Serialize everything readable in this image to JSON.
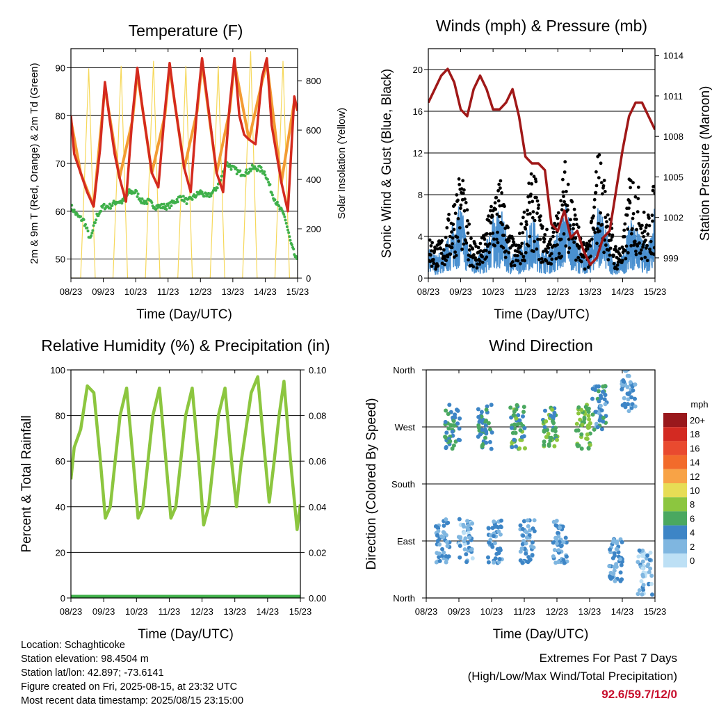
{
  "chart_data": [
    {
      "type": "line",
      "title": "Temperature (F)",
      "xlabel": "Time (Day/UTC)",
      "ylabel": "2m & 9m T (Red, Orange) & 2m Td (Green)",
      "ylabel_right": "Solar Insolation (Yellow)",
      "x_ticks": [
        "08/23",
        "09/23",
        "10/23",
        "11/23",
        "12/23",
        "13/23",
        "14/23",
        "15/23"
      ],
      "ylim": [
        46,
        94
      ],
      "y_ticks": [
        50,
        60,
        70,
        80,
        90
      ],
      "ylim_right": [
        0,
        930
      ],
      "y_ticks_right": [
        0,
        200,
        400,
        600,
        800
      ],
      "colors": {
        "t2m": "#d42a1e",
        "t9m": "#f39c33",
        "td": "#3fb04a",
        "solar": "#f6d85a"
      },
      "series": [
        {
          "name": "2m T",
          "x": [
            0,
            0.1,
            0.3,
            0.5,
            0.7,
            0.9,
            1.05,
            1.2,
            1.35,
            1.5,
            1.7,
            1.9,
            2.05,
            2.2,
            2.35,
            2.5,
            2.7,
            2.9,
            3.05,
            3.2,
            3.35,
            3.5,
            3.7,
            3.9,
            4.05,
            4.2,
            4.35,
            4.5,
            4.7,
            4.9,
            5.05,
            5.2,
            5.35,
            5.5,
            5.7,
            5.9,
            6.05,
            6.2,
            6.35,
            6.5,
            6.7,
            6.9,
            7.0
          ],
          "values": [
            80,
            72,
            68,
            64,
            61,
            73,
            87,
            79,
            72,
            67,
            62,
            80,
            90,
            82,
            75,
            68,
            65,
            81,
            91,
            83,
            76,
            69,
            64,
            82,
            92,
            84,
            76,
            68,
            64,
            82,
            92,
            80,
            76,
            75,
            74,
            88,
            92,
            78,
            72,
            66,
            60,
            84,
            81
          ]
        },
        {
          "name": "9m T",
          "x": [
            0,
            0.3,
            0.7,
            1.05,
            1.5,
            1.9,
            2.05,
            2.5,
            2.9,
            3.05,
            3.5,
            3.9,
            4.05,
            4.5,
            4.9,
            5.05,
            5.5,
            5.9,
            6.05,
            6.5,
            6.9,
            7.0
          ],
          "values": [
            79,
            68,
            61,
            86,
            67,
            79,
            89,
            68,
            80,
            90,
            69,
            81,
            91,
            68,
            81,
            91,
            75,
            87,
            91,
            66,
            83,
            81
          ]
        },
        {
          "name": "2m Td",
          "x": [
            0,
            0.2,
            0.4,
            0.6,
            0.8,
            1.0,
            1.2,
            1.4,
            1.6,
            1.8,
            2.0,
            2.2,
            2.4,
            2.6,
            2.8,
            3.0,
            3.2,
            3.4,
            3.6,
            3.8,
            4.0,
            4.2,
            4.4,
            4.6,
            4.8,
            5.0,
            5.2,
            5.4,
            5.6,
            5.8,
            6.0,
            6.2,
            6.4,
            6.6,
            6.8,
            7.0
          ],
          "values": [
            61,
            59,
            58,
            54,
            59,
            61,
            61,
            62,
            62,
            64,
            64,
            62,
            62,
            61,
            61,
            61,
            62,
            63,
            62,
            63,
            64,
            63,
            64,
            66,
            70,
            69,
            68,
            68,
            69,
            69,
            68,
            64,
            61,
            59,
            53,
            49
          ]
        },
        {
          "name": "Solar Insolation",
          "axis": "right",
          "x": [
            0,
            0.3,
            0.55,
            0.75,
            0.95,
            1.3,
            1.55,
            1.75,
            1.95,
            2.3,
            2.55,
            2.75,
            2.95,
            3.3,
            3.55,
            3.75,
            3.95,
            4.3,
            4.55,
            4.75,
            4.95,
            5.3,
            5.55,
            5.75,
            5.95,
            6.3,
            6.55,
            6.75,
            6.95
          ],
          "values": [
            0,
            0,
            850,
            0,
            0,
            0,
            860,
            0,
            0,
            0,
            880,
            0,
            0,
            0,
            860,
            0,
            0,
            0,
            860,
            0,
            0,
            0,
            920,
            0,
            0,
            0,
            880,
            0,
            0
          ]
        }
      ]
    },
    {
      "type": "scatter",
      "title": "Winds (mph) & Pressure (mb)",
      "xlabel": "Time (Day/UTC)",
      "ylabel": "Sonic Wind & Gust (Blue, Black)",
      "ylabel_right": "Station Pressure (Maroon)",
      "x_ticks": [
        "08/23",
        "09/23",
        "10/23",
        "11/23",
        "12/23",
        "13/23",
        "14/23",
        "15/23"
      ],
      "ylim": [
        0,
        22
      ],
      "y_ticks": [
        0,
        4,
        8,
        12,
        16,
        20
      ],
      "ylim_right": [
        997.5,
        1014.5
      ],
      "y_ticks_right": [
        999,
        1002,
        1005,
        1008,
        1011,
        1014
      ],
      "colors": {
        "wind": "#4a90d0",
        "gust": "#000000",
        "pressure": "#a01818"
      },
      "series": [
        {
          "name": "Station Pressure",
          "axis": "right",
          "x": [
            0,
            0.2,
            0.4,
            0.6,
            0.8,
            1.0,
            1.2,
            1.4,
            1.6,
            1.8,
            2.0,
            2.2,
            2.4,
            2.6,
            2.8,
            3.0,
            3.2,
            3.4,
            3.6,
            3.8,
            4.0,
            4.2,
            4.4,
            4.6,
            4.8,
            5.0,
            5.2,
            5.4,
            5.6,
            5.8,
            6.0,
            6.2,
            6.4,
            6.6,
            6.8,
            7.0
          ],
          "values": [
            1010.5,
            1011.5,
            1012.5,
            1013.0,
            1012.0,
            1010.0,
            1009.5,
            1011.5,
            1012.5,
            1011.5,
            1010.0,
            1010.0,
            1010.5,
            1011.5,
            1009.5,
            1006.5,
            1006.0,
            1006.0,
            1005.5,
            1001.5,
            1001.0,
            1002.5,
            1000.5,
            1001.0,
            999.5,
            998.5,
            999.0,
            1000.5,
            1001.0,
            1004.0,
            1007.0,
            1009.5,
            1010.5,
            1010.5,
            1009.5,
            1008.5
          ]
        },
        {
          "name": "Sonic Wind",
          "x": [
            0,
            0.25,
            0.5,
            0.75,
            1.0,
            1.25,
            1.5,
            1.75,
            2.0,
            2.25,
            2.5,
            2.75,
            3.0,
            3.25,
            3.5,
            3.75,
            4.0,
            4.25,
            4.5,
            4.75,
            5.0,
            5.25,
            5.5,
            5.75,
            6.0,
            6.25,
            6.5,
            6.75,
            7.0
          ],
          "values": [
            2,
            1.5,
            2,
            3.5,
            5,
            2,
            1.5,
            2,
            4,
            4.5,
            2,
            1.5,
            3,
            4,
            2,
            2,
            3,
            5,
            3,
            1.5,
            2,
            5,
            3,
            1,
            1.5,
            4,
            3,
            2,
            5
          ]
        },
        {
          "name": "Gust",
          "x": [
            0,
            0.25,
            0.5,
            0.75,
            1.0,
            1.25,
            1.5,
            1.75,
            2.0,
            2.25,
            2.5,
            2.75,
            3.0,
            3.25,
            3.5,
            3.75,
            4.0,
            4.25,
            4.5,
            4.75,
            5.0,
            5.25,
            5.5,
            5.75,
            6.0,
            6.25,
            6.5,
            6.75,
            7.0
          ],
          "values": [
            4,
            3,
            4,
            7,
            10,
            5,
            3,
            4,
            8,
            9,
            4,
            3,
            7,
            10,
            5,
            4,
            6,
            11,
            7,
            3,
            4,
            12,
            8,
            3,
            3,
            10,
            8,
            5,
            9
          ]
        }
      ]
    },
    {
      "type": "line",
      "title": "Relative Humidity (%) & Precipitation (in)",
      "xlabel": "Time (Day/UTC)",
      "ylabel": "Percent & Total Rainfall",
      "x_ticks": [
        "08/23",
        "09/23",
        "10/23",
        "11/23",
        "12/23",
        "13/23",
        "14/23",
        "15/23"
      ],
      "ylim": [
        0,
        100
      ],
      "y_ticks": [
        0,
        20,
        40,
        60,
        80,
        100
      ],
      "ylim_right": [
        0,
        0.1
      ],
      "y_ticks_right": [
        "0.00",
        "0.02",
        "0.04",
        "0.06",
        "0.08",
        "0.10"
      ],
      "colors": {
        "rh": "#8cc63f",
        "precip": "#3fb04a"
      },
      "series": [
        {
          "name": "Relative Humidity",
          "x": [
            0,
            0.1,
            0.3,
            0.5,
            0.7,
            0.9,
            1.05,
            1.2,
            1.35,
            1.5,
            1.7,
            1.9,
            2.05,
            2.2,
            2.35,
            2.5,
            2.7,
            2.9,
            3.05,
            3.2,
            3.35,
            3.5,
            3.7,
            3.9,
            4.05,
            4.2,
            4.35,
            4.5,
            4.7,
            4.9,
            5.05,
            5.2,
            5.35,
            5.5,
            5.7,
            5.9,
            6.05,
            6.2,
            6.35,
            6.5,
            6.7,
            6.9,
            7.0
          ],
          "values": [
            52,
            66,
            74,
            93,
            90,
            60,
            35,
            40,
            60,
            80,
            92,
            60,
            35,
            40,
            60,
            80,
            92,
            60,
            35,
            40,
            60,
            80,
            92,
            60,
            32,
            40,
            60,
            80,
            92,
            60,
            40,
            60,
            75,
            90,
            97,
            65,
            42,
            60,
            80,
            95,
            60,
            30,
            41
          ]
        },
        {
          "name": "Total Precipitation",
          "axis": "right",
          "x": [
            0,
            7.0
          ],
          "values": [
            0,
            0
          ]
        }
      ]
    },
    {
      "type": "scatter",
      "title": "Wind Direction",
      "xlabel": "Time (Day/UTC)",
      "ylabel": "Direction (Colored By Speed)",
      "x_ticks": [
        "08/23",
        "09/23",
        "10/23",
        "11/23",
        "12/23",
        "13/23",
        "14/23",
        "15/23"
      ],
      "y_ticks": [
        "North",
        "West",
        "South",
        "East",
        "North"
      ],
      "ylim": [
        0,
        360
      ],
      "legend": {
        "title": "mph",
        "labels": [
          "20+",
          "18",
          "16",
          "14",
          "12",
          "10",
          "8",
          "6",
          "4",
          "2",
          "0"
        ],
        "colors": [
          "#99181c",
          "#d32a22",
          "#e94a2f",
          "#f26b2b",
          "#f8a346",
          "#e7dd55",
          "#8cc63f",
          "#4aa860",
          "#3d85c6",
          "#7fb6e0",
          "#bde0f5"
        ]
      },
      "clusters": [
        {
          "x": 0.5,
          "dir": 90,
          "speed": 3
        },
        {
          "x": 0.8,
          "dir": 270,
          "speed": 5
        },
        {
          "x": 1.2,
          "dir": 90,
          "speed": 2
        },
        {
          "x": 1.8,
          "dir": 270,
          "speed": 5
        },
        {
          "x": 2.1,
          "dir": 90,
          "speed": 3
        },
        {
          "x": 2.8,
          "dir": 270,
          "speed": 6
        },
        {
          "x": 3.1,
          "dir": 90,
          "speed": 3
        },
        {
          "x": 3.8,
          "dir": 270,
          "speed": 6
        },
        {
          "x": 4.1,
          "dir": 90,
          "speed": 3
        },
        {
          "x": 4.8,
          "dir": 270,
          "speed": 7
        },
        {
          "x": 5.3,
          "dir": 300,
          "speed": 4
        },
        {
          "x": 5.8,
          "dir": 60,
          "speed": 3
        },
        {
          "x": 6.2,
          "dir": 330,
          "speed": 3
        },
        {
          "x": 6.7,
          "dir": 40,
          "speed": 2
        }
      ]
    }
  ],
  "info": {
    "location": "Location: Schaghticoke",
    "elevation": "Station elevation: 98.4504 m",
    "latlon": "Station lat/lon: 42.897; -73.6141",
    "created": "Figure created on Fri, 2025-08-15, at 23:32 UTC",
    "timestamp": "Most recent data timestamp: 2025/08/15 23:15:00"
  },
  "extremes": {
    "line1": "Extremes For Past 7 Days",
    "line2": "(High/Low/Max Wind/Total Precipitation)",
    "value": "92.6/59.7/12/0"
  }
}
